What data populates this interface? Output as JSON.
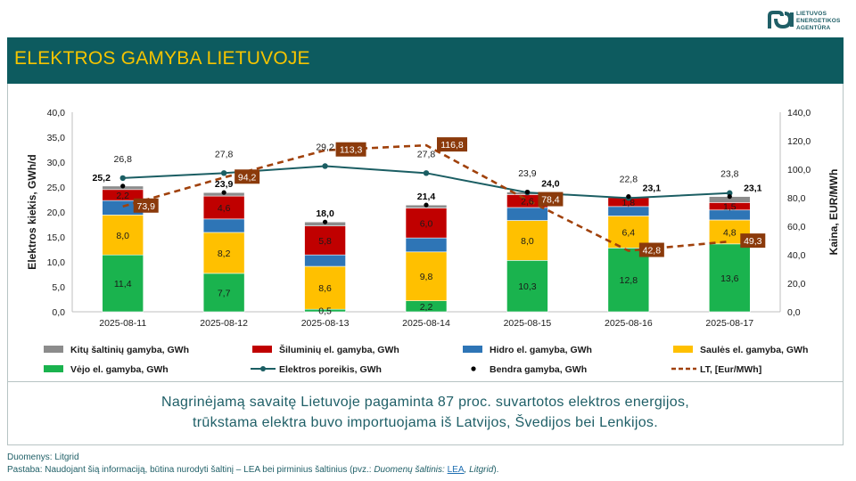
{
  "logo": {
    "text_lines": [
      "LIETUVOS",
      "ENERGETIKOS",
      "AGENTŪRA"
    ]
  },
  "header": {
    "title": "ELEKTROS GAMYBA LIETUVOJE"
  },
  "summary": {
    "line1": "Nagrinėjamą savaitę Lietuvoje pagaminta 87 proc. suvartotos elektros energijos,",
    "line2": "trūkstama elektra buvo importuojama iš Latvijos, Švedijos bei Lenkijos."
  },
  "footer": {
    "source": "Duomenys: Litgrid",
    "note_prefix": "Pastaba: Naudojant šią informaciją, būtina nurodyti šaltinį – LEA bei pirminius šaltinius (pvz.: ",
    "note_italic": "Duomenų šaltinis: ",
    "note_link": "LEA",
    "note_sep": ", ",
    "note_italic2": "Litgrid",
    "note_suffix": ")."
  },
  "chart_data": {
    "type": "bar",
    "stacked": true,
    "categories": [
      "2025-08-11",
      "2025-08-12",
      "2025-08-13",
      "2025-08-14",
      "2025-08-15",
      "2025-08-16",
      "2025-08-17"
    ],
    "ylabel": "Elektros kiekis, GWh/d",
    "y2label": "Kaina, EUR/MWh",
    "ylim": [
      0,
      40
    ],
    "y_ticks": [
      "0,0",
      "5,0",
      "10,0",
      "15,0",
      "20,0",
      "25,0",
      "30,0",
      "35,0",
      "40,0"
    ],
    "y2lim": [
      0,
      140
    ],
    "y2_ticks": [
      "0,0",
      "20,0",
      "40,0",
      "60,0",
      "80,0",
      "100,0",
      "120,0",
      "140,0"
    ],
    "grid": false,
    "legend_position": "bottom",
    "series": [
      {
        "name": "Vėjo el. gamyba, GWh",
        "kind": "bar",
        "color": "#1ab34e",
        "values": [
          11.4,
          7.7,
          0.5,
          2.2,
          10.3,
          12.8,
          13.6
        ],
        "labels": [
          "11,4",
          "7,7",
          "0,5",
          "2,2",
          "10,3",
          "12,8",
          "13,6"
        ]
      },
      {
        "name": "Saulės el. gamyba, GWh",
        "kind": "bar",
        "color": "#ffc000",
        "values": [
          8.0,
          8.2,
          8.6,
          9.8,
          8.0,
          6.4,
          4.8
        ],
        "labels": [
          "8,0",
          "8,2",
          "8,6",
          "9,8",
          "8,0",
          "6,4",
          "4,8"
        ]
      },
      {
        "name": "Hidro el. gamyba, GWh",
        "kind": "bar",
        "color": "#2e75b6",
        "values": [
          2.9,
          2.7,
          2.3,
          2.8,
          2.6,
          1.9,
          2.0
        ],
        "labels": [
          "",
          "",
          "",
          "",
          "",
          "",
          ""
        ]
      },
      {
        "name": "Šiluminių el. gamyba, GWh",
        "kind": "bar",
        "color": "#c00000",
        "values": [
          2.2,
          4.6,
          5.8,
          6.0,
          2.6,
          1.8,
          1.5
        ],
        "labels": [
          "2,2",
          "4,6",
          "5,8",
          "6,0",
          "2,6",
          "1,8",
          "1,5"
        ]
      },
      {
        "name": "Kitų šaltinių gamyba,  GWh",
        "kind": "bar",
        "color": "#8c8c8c",
        "values": [
          0.7,
          0.7,
          0.8,
          0.6,
          0.5,
          0.2,
          1.2
        ],
        "labels": [
          "",
          "",
          "",
          "",
          "",
          "",
          ""
        ]
      },
      {
        "name": "Elektros poreikis, GWh",
        "kind": "line",
        "color": "#1b5e63",
        "values": [
          26.8,
          27.8,
          29.2,
          27.8,
          23.9,
          22.8,
          23.8
        ],
        "labels": [
          "26,8",
          "27,8",
          "29,2",
          "27,8",
          "23,9",
          "22,8",
          "23,8"
        ]
      },
      {
        "name": "Bendra gamyba, GWh",
        "kind": "marker",
        "color": "#000000",
        "values": [
          25.2,
          23.9,
          18.0,
          21.4,
          24.0,
          23.1,
          23.1
        ],
        "labels": [
          "25,2",
          "23,9",
          "18,0",
          "21,4",
          "24,0",
          "23,1",
          "23,1"
        ]
      },
      {
        "name": "LT, [Eur/MWh]",
        "kind": "dashed-line",
        "axis": "right",
        "color": "#a0410b",
        "values": [
          73.9,
          94.2,
          113.3,
          116.8,
          78.4,
          42.8,
          49.3
        ],
        "labels": [
          "73,9",
          "94,2",
          "113,3",
          "116,8",
          "78,4",
          "42,8",
          "49,3"
        ]
      }
    ]
  }
}
